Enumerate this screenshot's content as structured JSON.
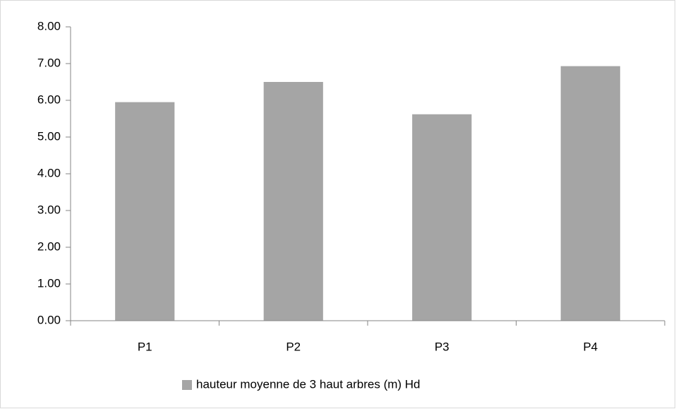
{
  "chart_data": {
    "type": "bar",
    "categories": [
      "P1",
      "P2",
      "P3",
      "P4"
    ],
    "series": [
      {
        "name": "hauteur moyenne de 3 haut arbres (m) Hd",
        "color": "#a5a5a5",
        "values": [
          5.95,
          6.5,
          5.62,
          6.93
        ]
      }
    ],
    "ylim": [
      0,
      8
    ],
    "yticks": [
      {
        "value": 0,
        "label": "0.00"
      },
      {
        "value": 1,
        "label": "1.00"
      },
      {
        "value": 2,
        "label": "2.00"
      },
      {
        "value": 3,
        "label": "3.00"
      },
      {
        "value": 4,
        "label": "4.00"
      },
      {
        "value": 5,
        "label": "5.00"
      },
      {
        "value": 6,
        "label": "6.00"
      },
      {
        "value": 7,
        "label": "7.00"
      },
      {
        "value": 8,
        "label": "8.00"
      }
    ],
    "grid": false,
    "legend": "bottom"
  }
}
